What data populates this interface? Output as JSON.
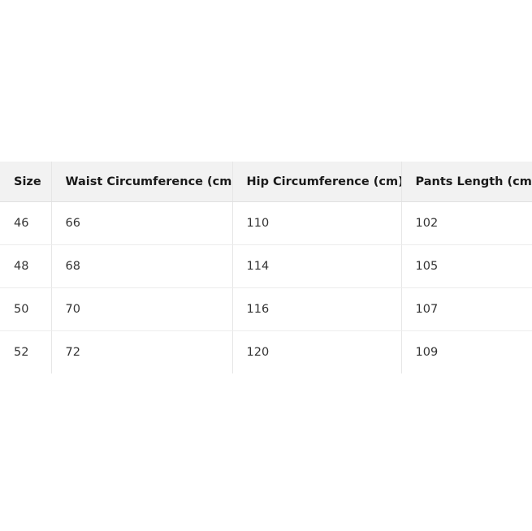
{
  "table": {
    "headers": [
      "Size",
      "Waist Circumference (cm)",
      "Hip Circumference (cm)",
      "Pants Length (cm)"
    ],
    "rows": [
      [
        "46",
        "66",
        "110",
        "102"
      ],
      [
        "48",
        "68",
        "114",
        "105"
      ],
      [
        "50",
        "70",
        "116",
        "107"
      ],
      [
        "52",
        "72",
        "120",
        "109"
      ]
    ]
  }
}
